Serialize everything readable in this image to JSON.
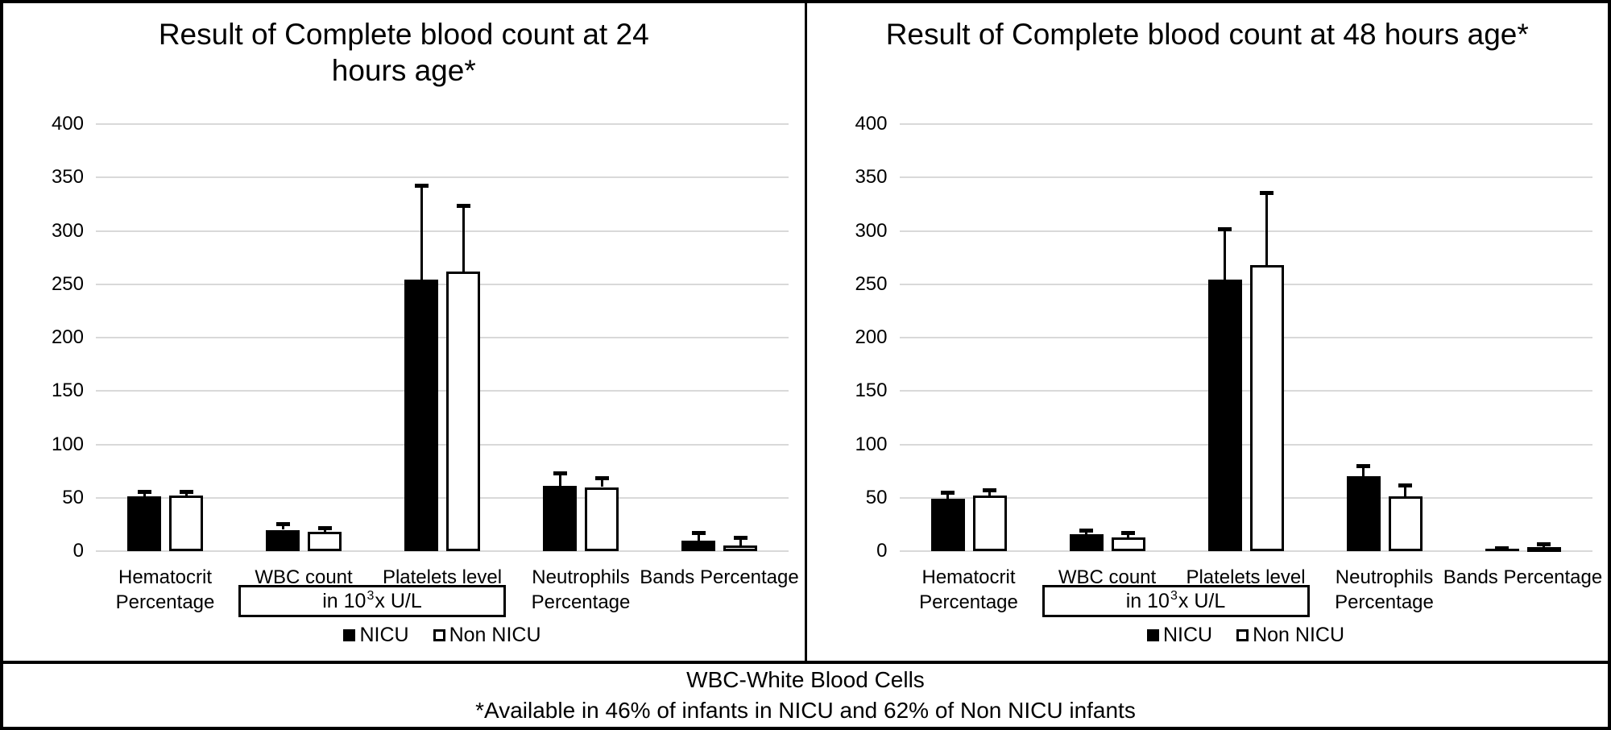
{
  "chart_data": [
    {
      "type": "bar",
      "title": "Result of Complete blood count at 24 hours age*",
      "categories": [
        "Hematocrit Percentage",
        "WBC count",
        "Platelets level",
        "Neutrophils Percentage",
        "Bands Percentage"
      ],
      "series": [
        {
          "name": "NICU",
          "fill": "#000000",
          "values": [
            51,
            20,
            254,
            61,
            10
          ],
          "error_top": [
            56,
            26,
            343,
            73,
            17
          ]
        },
        {
          "name": "Non NICU",
          "fill": "#ffffff",
          "values": [
            52,
            18,
            262,
            60,
            5
          ],
          "error_top": [
            56,
            22,
            324,
            69,
            13
          ]
        }
      ],
      "ylim": [
        0,
        400
      ],
      "y_ticks": [
        0,
        50,
        100,
        150,
        200,
        250,
        300,
        350,
        400
      ],
      "grid": true,
      "legend_position": "bottom",
      "legend": [
        "NICU",
        "Non NICU"
      ],
      "unit_note": {
        "prefix": "in 10",
        "sup": "3",
        "suffix": "x  U/L"
      }
    },
    {
      "type": "bar",
      "title": "Result of Complete blood count at 48 hours age*",
      "categories": [
        "Hematocrit Percentage",
        "WBC count",
        "Platelets level",
        "Neutrophils Percentage",
        "Bands Percentage"
      ],
      "series": [
        {
          "name": "NICU",
          "fill": "#000000",
          "values": [
            49,
            16,
            254,
            70,
            2
          ],
          "error_top": [
            55,
            20,
            302,
            80,
            3
          ]
        },
        {
          "name": "Non NICU",
          "fill": "#ffffff",
          "values": [
            52,
            13,
            268,
            51,
            4
          ],
          "error_top": [
            57,
            17,
            336,
            62,
            7
          ]
        }
      ],
      "ylim": [
        0,
        400
      ],
      "y_ticks": [
        0,
        50,
        100,
        150,
        200,
        250,
        300,
        350,
        400
      ],
      "grid": true,
      "legend_position": "bottom",
      "legend": [
        "NICU",
        "Non NICU"
      ],
      "unit_note": {
        "prefix": "in 10",
        "sup": "3",
        "suffix": "x  U/L"
      }
    }
  ],
  "footer": {
    "line1": "WBC-White Blood Cells",
    "line2": "*Available in 46% of infants in NICU and 62% of Non NICU infants"
  },
  "colors": {
    "nicu": "#000000",
    "non_nicu": "#ffffff",
    "gridline": "#d9d9d9",
    "border": "#000000"
  }
}
